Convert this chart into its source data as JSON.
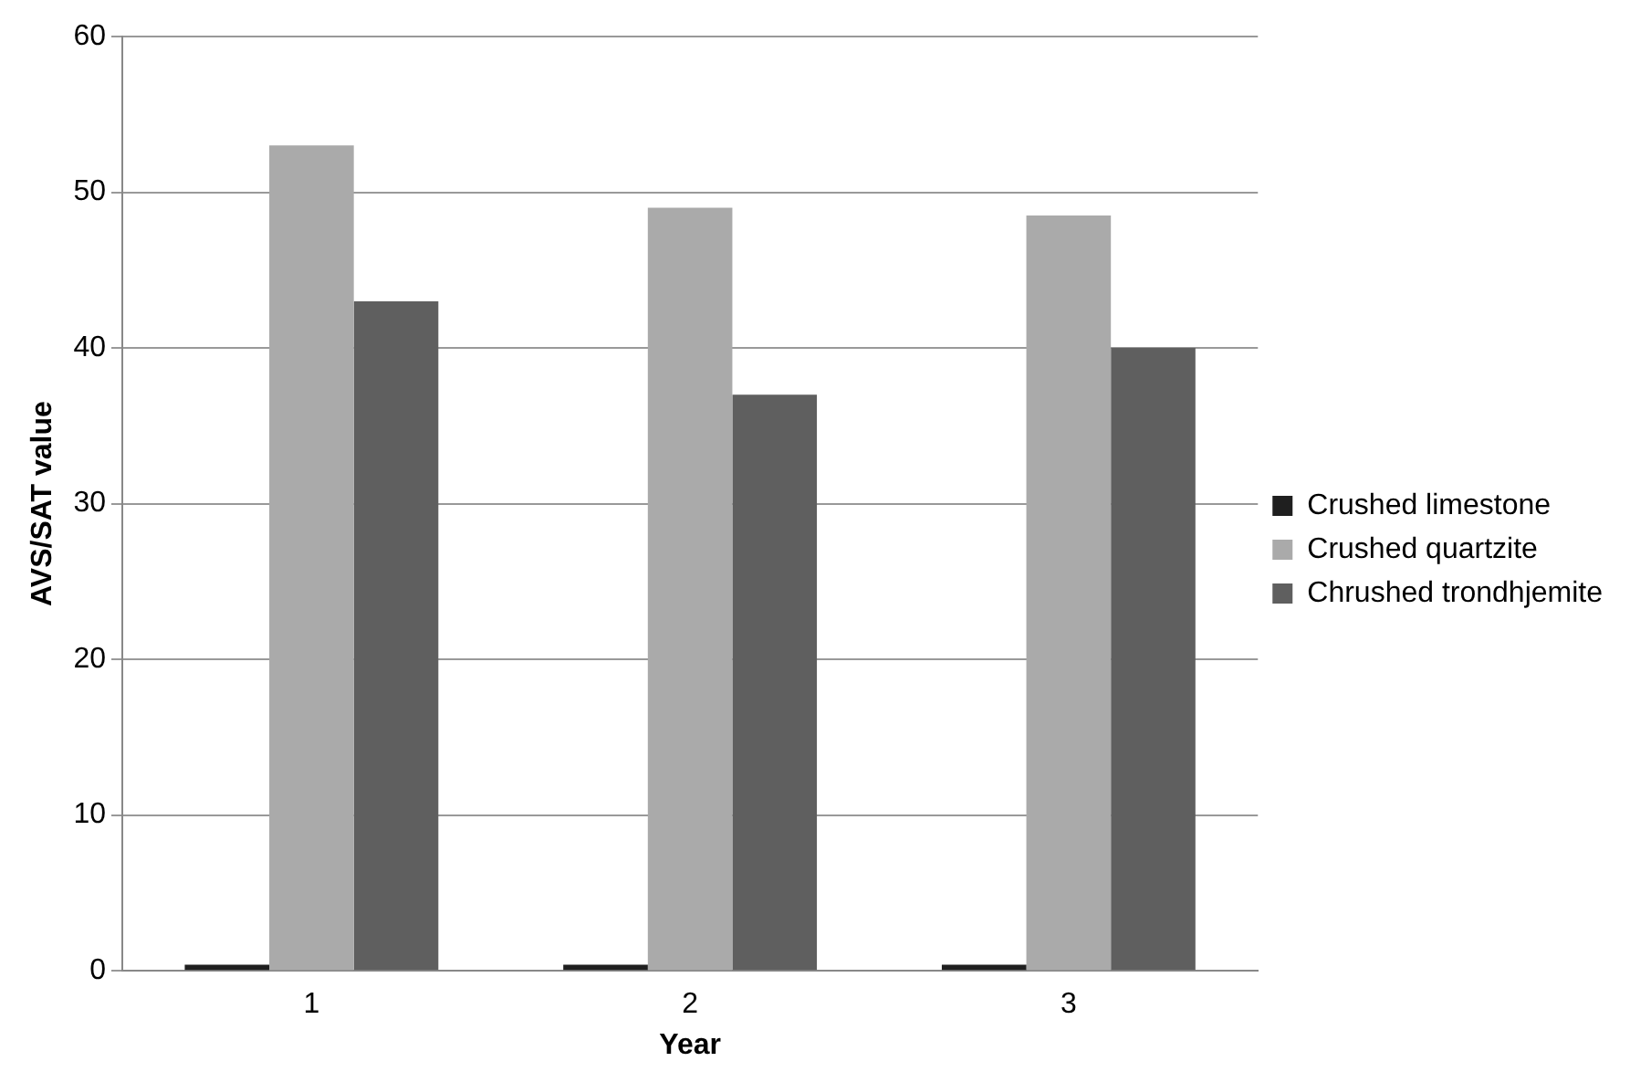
{
  "chart_data": {
    "type": "bar",
    "xlabel": "Year",
    "ylabel": "AVS/SAT value",
    "categories": [
      "1",
      "2",
      "3"
    ],
    "series": [
      {
        "name": "Crushed limestone",
        "color": "#1f1f1f",
        "values": [
          0.4,
          0.4,
          0.4
        ]
      },
      {
        "name": "Crushed quartzite",
        "color": "#aaaaaa",
        "values": [
          53,
          49,
          48.5
        ]
      },
      {
        "name": "Chrushed trondhjemite",
        "color": "#5f5f5f",
        "values": [
          43,
          37,
          40
        ]
      }
    ],
    "ylim": [
      0,
      60
    ],
    "yticks": [
      0,
      10,
      20,
      30,
      40,
      50,
      60
    ],
    "grid": "y",
    "legend": "right"
  }
}
